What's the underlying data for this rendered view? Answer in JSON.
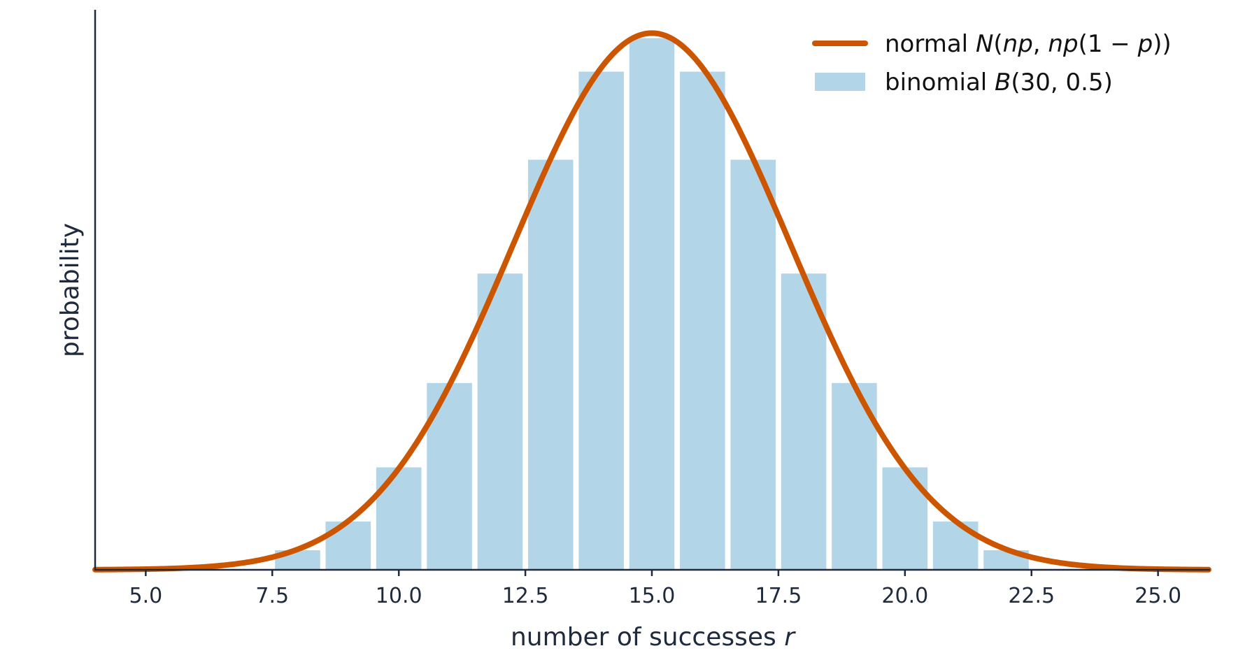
{
  "chart_data": {
    "type": "bar",
    "title": "",
    "xlabel": "number of successes",
    "xlabel_var": "r",
    "ylabel": "probability",
    "xlim": [
      4.0,
      26.0
    ],
    "ylim": [
      0,
      0.152
    ],
    "x_ticks": [
      5.0,
      7.5,
      10.0,
      12.5,
      15.0,
      17.5,
      20.0,
      22.5,
      25.0
    ],
    "x_tick_labels": [
      "5.0",
      "7.5",
      "10.0",
      "12.5",
      "15.0",
      "17.5",
      "20.0",
      "22.5",
      "25.0"
    ],
    "y_ticks_shown": false,
    "grid": false,
    "legend_position": "top-right",
    "series": [
      {
        "name": "binomial B(30, 0.5)",
        "kind": "bar",
        "color": "#b3d5e8",
        "edge_color": "#ffffff",
        "x": [
          8,
          9,
          10,
          11,
          12,
          13,
          14,
          15,
          16,
          17,
          18,
          19,
          20,
          21,
          22
        ],
        "values": [
          0.0055,
          0.0133,
          0.028,
          0.0509,
          0.0806,
          0.1115,
          0.1354,
          0.1445,
          0.1354,
          0.1115,
          0.0806,
          0.0509,
          0.028,
          0.0133,
          0.0055
        ],
        "bar_width": 0.92
      },
      {
        "name": "normal N(np, np(1 − p))",
        "kind": "line",
        "color": "#cc5500",
        "mean": 15,
        "variance": 7.5,
        "x_range": [
          4.0,
          26.0
        ]
      }
    ],
    "legend": [
      {
        "type": "line",
        "color": "#cc5500",
        "parts": [
          {
            "t": "normal ",
            "it": false
          },
          {
            "t": "N",
            "it": true
          },
          {
            "t": "(",
            "it": false
          },
          {
            "t": "np",
            "it": true
          },
          {
            "t": ", ",
            "it": false
          },
          {
            "t": "np",
            "it": true
          },
          {
            "t": "(1 − ",
            "it": false
          },
          {
            "t": "p",
            "it": true
          },
          {
            "t": "))",
            "it": false
          }
        ]
      },
      {
        "type": "patch",
        "color": "#b3d5e8",
        "parts": [
          {
            "t": "binomial ",
            "it": false
          },
          {
            "t": "B",
            "it": true
          },
          {
            "t": "(30, 0.5)",
            "it": false
          }
        ]
      }
    ]
  },
  "colors": {
    "axis": "#1f2a3d",
    "bar": "#b3d5e8",
    "curve": "#cc5500"
  }
}
